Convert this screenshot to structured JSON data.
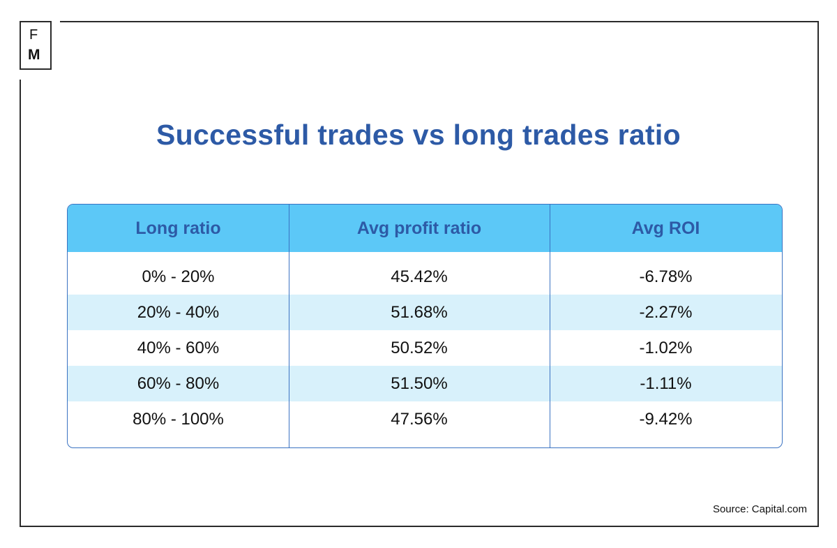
{
  "logo": {
    "line1": "F",
    "line2": "M"
  },
  "chart_data": {
    "type": "table",
    "title": "Successful trades vs long trades ratio",
    "columns": [
      "Long ratio",
      "Avg profit ratio",
      "Avg ROI"
    ],
    "rows": [
      [
        "0% - 20%",
        "45.42%",
        "-6.78%"
      ],
      [
        "20% - 40%",
        "51.68%",
        "-2.27%"
      ],
      [
        "40% - 60%",
        "50.52%",
        "-1.02%"
      ],
      [
        "60% - 80%",
        "51.50%",
        "-1.11%"
      ],
      [
        "80% - 100%",
        "47.56%",
        "-9.42%"
      ]
    ]
  },
  "source": "Source: Capital.com",
  "colors": {
    "title": "#2d5aa6",
    "header_bg": "#5cc8f7",
    "row_shade": "#d8f1fb",
    "border": "#3a72c2"
  }
}
